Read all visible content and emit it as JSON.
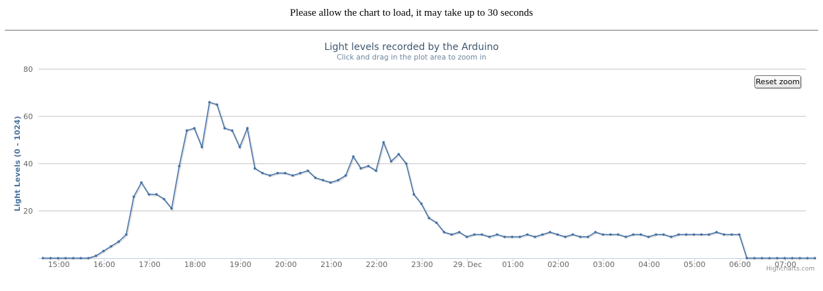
{
  "page": {
    "notice": "Please allow the chart to load, it may take up to 30 seconds"
  },
  "controls": {
    "reset_zoom_label": "Reset zoom"
  },
  "credits": "Highcharts.com",
  "colors": {
    "series": "#4572a7",
    "grid": "#c0c0c0",
    "axis_text": "#666666",
    "title": "#3e576f"
  },
  "chart_data": {
    "type": "line",
    "title": "Light levels recorded by the Arduino",
    "subtitle": "Click and drag in the plot area to zoom in",
    "xlabel": "",
    "ylabel": "Light Levels (0 - 1024)",
    "ylim": [
      0,
      80
    ],
    "yticks": [
      20,
      40,
      60,
      80
    ],
    "grid": true,
    "xlim_hours": [
      14.55,
      31.45
    ],
    "xticks": [
      {
        "h": 15,
        "label": "15:00"
      },
      {
        "h": 16,
        "label": "16:00"
      },
      {
        "h": 17,
        "label": "17:00"
      },
      {
        "h": 18,
        "label": "18:00"
      },
      {
        "h": 19,
        "label": "19:00"
      },
      {
        "h": 20,
        "label": "20:00"
      },
      {
        "h": 21,
        "label": "21:00"
      },
      {
        "h": 22,
        "label": "22:00"
      },
      {
        "h": 23,
        "label": "23:00"
      },
      {
        "h": 24,
        "label": "29. Dec"
      },
      {
        "h": 25,
        "label": "01:00"
      },
      {
        "h": 26,
        "label": "02:00"
      },
      {
        "h": 27,
        "label": "03:00"
      },
      {
        "h": 28,
        "label": "04:00"
      },
      {
        "h": 29,
        "label": "05:00"
      },
      {
        "h": 30,
        "label": "06:00"
      },
      {
        "h": 31,
        "label": "07:00"
      }
    ],
    "series": [
      {
        "x_start_hours": 14.65,
        "interval_minutes": 10,
        "values": [
          0,
          0,
          0,
          0,
          0,
          0,
          0,
          1,
          3,
          5,
          7,
          10,
          26,
          32,
          27,
          27,
          25,
          21,
          39,
          54,
          55,
          47,
          66,
          65,
          55,
          54,
          47,
          55,
          38,
          36,
          35,
          36,
          36,
          35,
          36,
          37,
          34,
          33,
          32,
          33,
          35,
          43,
          38,
          39,
          37,
          49,
          41,
          44,
          40,
          27,
          23,
          17,
          15,
          11,
          10,
          11,
          9,
          10,
          10,
          9,
          10,
          9,
          9,
          9,
          10,
          9,
          10,
          11,
          10,
          9,
          10,
          9,
          9,
          11,
          10,
          10,
          10,
          9,
          10,
          10,
          9,
          10,
          10,
          9,
          10,
          10,
          10,
          10,
          10,
          11,
          10,
          10,
          10,
          0,
          0,
          0,
          0,
          0,
          0,
          0,
          0,
          0,
          0
        ]
      }
    ]
  }
}
